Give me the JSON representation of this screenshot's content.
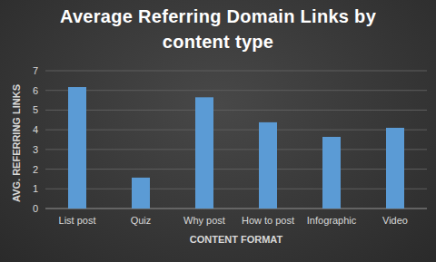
{
  "chart_data": {
    "type": "bar",
    "title": "Average Referring Domain Links by content type",
    "x_label": "CONTENT FORMAT",
    "y_label": "AVG. REFERRING LINKS",
    "categories": [
      "List post",
      "Quiz",
      "Why post",
      "How to post",
      "Infographic",
      "Video"
    ],
    "values": [
      6.17,
      1.57,
      5.65,
      4.38,
      3.64,
      4.1
    ],
    "color": "#5b9bd5",
    "ylim": [
      0,
      7
    ],
    "yticks": [
      0,
      1,
      2,
      3,
      4,
      5,
      6,
      7
    ],
    "grid": true
  }
}
